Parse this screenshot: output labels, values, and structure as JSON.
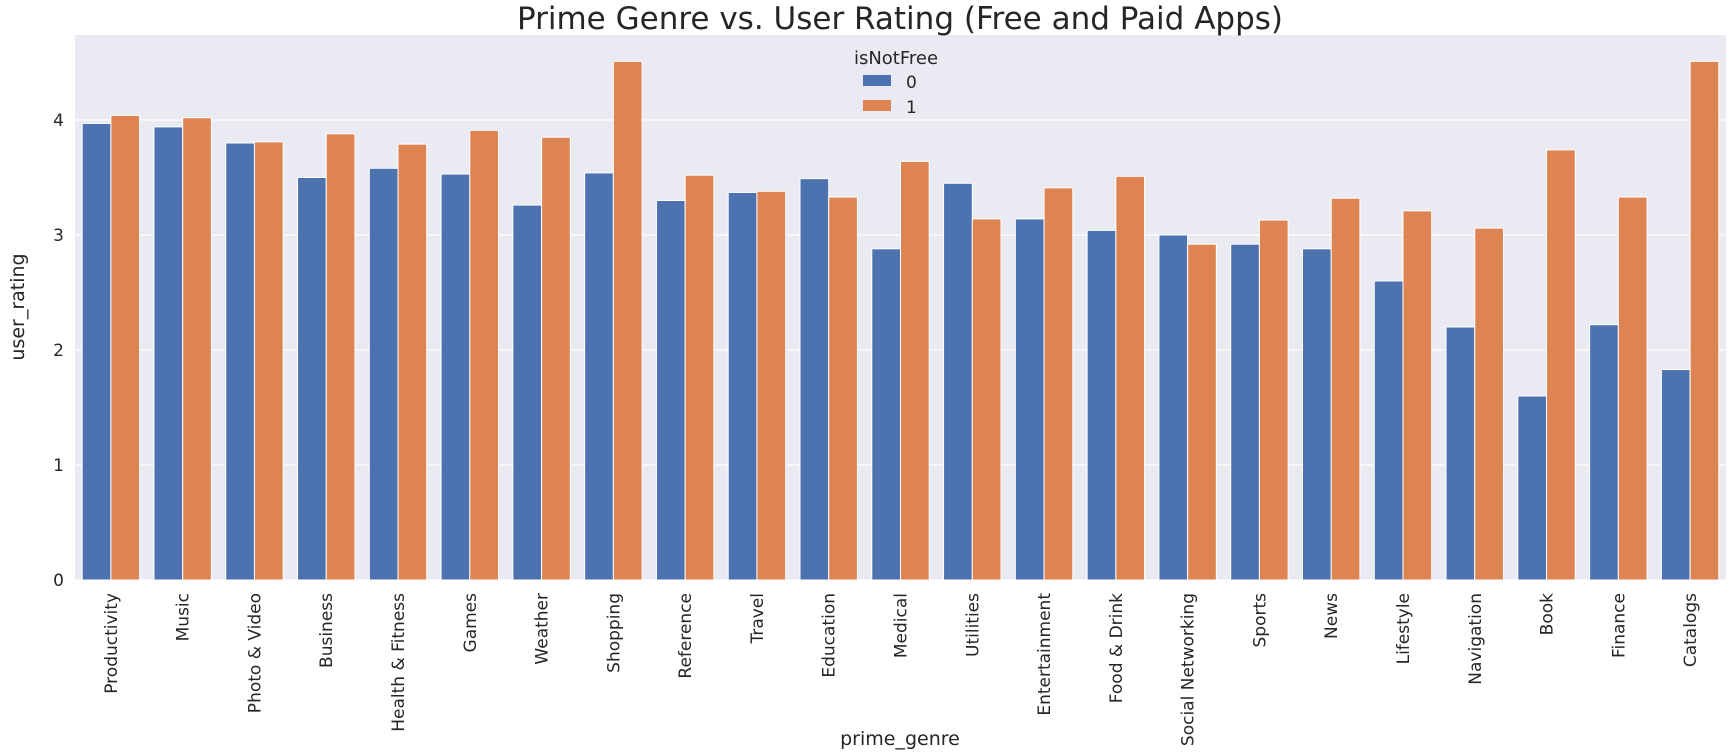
{
  "chart_data": {
    "type": "bar",
    "title": "Prime Genre vs. User Rating (Free and Paid Apps)",
    "xlabel": "prime_genre",
    "ylabel": "user_rating",
    "ylim": [
      0,
      4.6
    ],
    "yticks": [
      "0",
      "1",
      "2",
      "3",
      "4"
    ],
    "grid": true,
    "legend": {
      "title": "isNotFree",
      "placement": "top-center"
    },
    "categories": [
      "Productivity",
      "Music",
      "Photo & Video",
      "Business",
      "Health & Fitness",
      "Games",
      "Weather",
      "Shopping",
      "Reference",
      "Travel",
      "Education",
      "Medical",
      "Utilities",
      "Entertainment",
      "Food & Drink",
      "Social Networking",
      "Sports",
      "News",
      "Lifestyle",
      "Navigation",
      "Book",
      "Finance",
      "Catalogs"
    ],
    "series": [
      {
        "name": "0",
        "color": "#4c72b0",
        "values": [
          3.97,
          3.94,
          3.8,
          3.5,
          3.58,
          3.53,
          3.26,
          3.54,
          3.3,
          3.37,
          3.49,
          2.88,
          3.45,
          3.14,
          3.04,
          3.0,
          2.92,
          2.88,
          2.6,
          2.2,
          1.6,
          2.22,
          1.83
        ]
      },
      {
        "name": "1",
        "color": "#dd8452",
        "values": [
          4.04,
          4.02,
          3.81,
          3.88,
          3.79,
          3.91,
          3.85,
          4.51,
          3.52,
          3.38,
          3.33,
          3.64,
          3.14,
          3.41,
          3.51,
          2.92,
          3.13,
          3.32,
          3.21,
          3.06,
          3.74,
          3.33,
          4.51
        ]
      }
    ]
  }
}
